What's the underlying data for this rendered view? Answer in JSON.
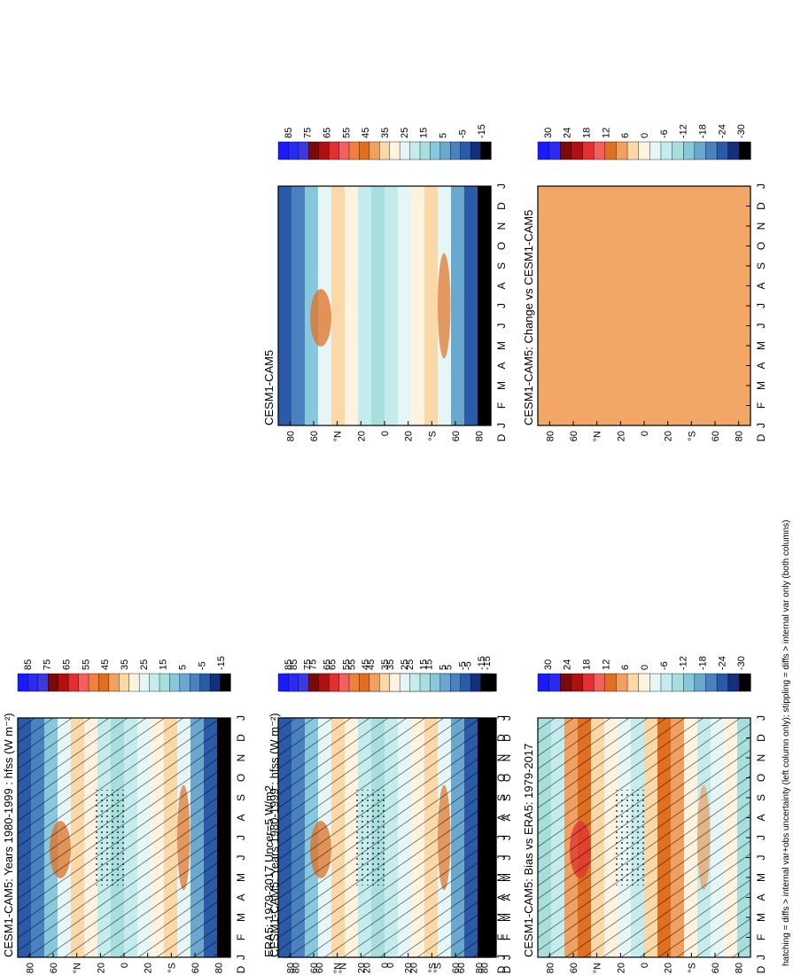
{
  "chart_data": [
    {
      "type": "heatmap",
      "title": "CESM1-CAM5: Years 1980-1999 : hfss (W m⁻²)",
      "x_ticks": [
        "J",
        "F",
        "M",
        "A",
        "M",
        "J",
        "J",
        "A",
        "S",
        "O",
        "N",
        "D",
        "J"
      ],
      "y_ticks": [
        "80",
        "60",
        "°N",
        "20",
        "0",
        "20",
        "°S",
        "60",
        "80"
      ],
      "y_edge_label": "D",
      "overlay": "hatching+stippling",
      "colorbar_labels": [
        "85",
        "75",
        "65",
        "55",
        "45",
        "35",
        "25",
        "15",
        "5",
        "-5",
        "-15"
      ]
    },
    {
      "type": "heatmap",
      "title": "CESM1-CAM5: Years 1980-1999 : hfss (W m⁻²)",
      "x_ticks": [
        "J",
        "F",
        "M",
        "A",
        "M",
        "J",
        "J",
        "A",
        "S",
        "O",
        "N",
        "D",
        "J"
      ],
      "y_ticks": [
        "80",
        "60",
        "°N",
        "20",
        "0",
        "20",
        "°S",
        "60",
        "80"
      ],
      "y_edge_label": "D",
      "overlay": "none",
      "colorbar_labels": [
        "85",
        "75",
        "65",
        "55",
        "45",
        "35",
        "25",
        "15",
        "5",
        "-5",
        "-15"
      ]
    },
    {
      "type": "heatmap",
      "title": "ERA5: 1979-2017 Uncer=5 W/m2",
      "x_ticks": [
        "J",
        "F",
        "M",
        "A",
        "M",
        "J",
        "J",
        "A",
        "S",
        "O",
        "N",
        "D",
        "J"
      ],
      "y_ticks": [
        "80",
        "60",
        "°N",
        "20",
        "0",
        "20",
        "°S",
        "60",
        "80"
      ],
      "y_edge_label": "D",
      "overlay": "hatching+stippling",
      "colorbar_labels": [
        "85",
        "75",
        "65",
        "55",
        "45",
        "35",
        "25",
        "15",
        "5",
        "-5",
        "-15"
      ]
    },
    {
      "type": "heatmap",
      "title": "CESM1-CAM5",
      "x_ticks": [
        "J",
        "F",
        "M",
        "A",
        "M",
        "J",
        "J",
        "A",
        "S",
        "O",
        "N",
        "D",
        "J"
      ],
      "y_ticks": [
        "80",
        "60",
        "°N",
        "20",
        "0",
        "20",
        "°S",
        "60",
        "80"
      ],
      "y_edge_label": "D",
      "overlay": "none",
      "colorbar_labels": [
        "85",
        "75",
        "65",
        "55",
        "45",
        "35",
        "25",
        "15",
        "5",
        "-5",
        "-15"
      ]
    },
    {
      "type": "heatmap",
      "title": "CESM1-CAM5: Bias vs ERA5: 1979-2017",
      "x_ticks": [
        "J",
        "F",
        "M",
        "A",
        "M",
        "J",
        "J",
        "A",
        "S",
        "O",
        "N",
        "D",
        "J"
      ],
      "y_ticks": [
        "80",
        "60",
        "°N",
        "20",
        "0",
        "20",
        "°S",
        "60",
        "80"
      ],
      "y_edge_label": "D",
      "overlay": "hatching+stippling",
      "colorbar_labels": [
        "30",
        "24",
        "18",
        "12",
        "6",
        "0",
        "-6",
        "-12",
        "-18",
        "-24",
        "-30"
      ]
    },
    {
      "type": "heatmap",
      "title": "CESM1-CAM5: Change vs CESM1-CAM5",
      "x_ticks": [
        "J",
        "F",
        "M",
        "A",
        "M",
        "J",
        "J",
        "A",
        "S",
        "O",
        "N",
        "D",
        "J"
      ],
      "y_ticks": [
        "80",
        "60",
        "°N",
        "20",
        "0",
        "20",
        "°S",
        "60",
        "80"
      ],
      "y_edge_label": "D",
      "overlay": "uniform",
      "colorbar_labels": [
        "30",
        "24",
        "18",
        "12",
        "6",
        "0",
        "-6",
        "-12",
        "-18",
        "-24",
        "-30"
      ]
    }
  ],
  "footnote": "hatching = diffs > internal var+obs uncertainty (left column only); stippling = diffs > internal var only (both columns)",
  "colors": {
    "full_scale": [
      "#1a1aff",
      "#2a2af0",
      "#3a3adf",
      "#7a0a0a",
      "#b01010",
      "#e03030",
      "#f26060",
      "#f08040",
      "#e07020",
      "#f0a060",
      "#fbd8a8",
      "#fff3e0",
      "#e6f6f6",
      "#c5ecec",
      "#a8dede",
      "#88c8dc",
      "#6aa8d0",
      "#4a82c0",
      "#2a5aa8",
      "#14307a",
      "#000000"
    ],
    "diff_scale": [
      "#1a1aff",
      "#2a2af0",
      "#7a0a0a",
      "#b01010",
      "#e03030",
      "#f26060",
      "#e07020",
      "#f0a060",
      "#fbd8a8",
      "#fff3e0",
      "#e6f6f6",
      "#c5ecec",
      "#a8dede",
      "#88c8dc",
      "#6aa8d0",
      "#4a82c0",
      "#2a5aa8",
      "#14307a",
      "#000000"
    ],
    "uniform_fill": "#f3a766"
  }
}
